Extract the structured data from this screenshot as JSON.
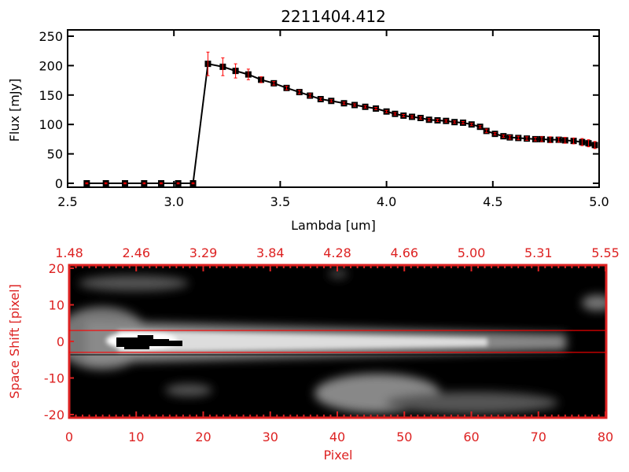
{
  "chart_data": [
    {
      "type": "line",
      "title": "2211404.412",
      "xlabel": "Lambda [um]",
      "ylabel": "Flux [mJy]",
      "xlim": [
        2.5,
        5.0
      ],
      "ylim": [
        -5,
        250
      ],
      "xticks": [
        "2.5",
        "3.0",
        "3.5",
        "4.0",
        "4.5",
        "5.0"
      ],
      "xtick_values": [
        2.5,
        3.0,
        3.5,
        4.0,
        4.5,
        5.0
      ],
      "yticks": [
        "0",
        "50",
        "100",
        "150",
        "200",
        "250"
      ],
      "ytick_values": [
        0,
        50,
        100,
        150,
        200,
        250
      ],
      "series": [
        {
          "name": "flux",
          "color": "#000000",
          "errcolor": "#ff0000",
          "x": [
            2.59,
            2.68,
            2.77,
            2.86,
            2.94,
            3.02,
            3.09,
            3.16,
            3.23,
            3.29,
            3.35,
            3.41,
            3.47,
            3.53,
            3.59,
            3.64,
            3.69,
            3.74,
            3.8,
            3.85,
            3.9,
            3.95,
            4.0,
            4.04,
            4.08,
            4.12,
            4.16,
            4.2,
            4.24,
            4.28,
            4.32,
            4.36,
            4.4,
            4.44,
            4.47,
            4.51,
            4.55,
            4.58,
            4.62,
            4.66,
            4.7,
            4.73,
            4.77,
            4.81,
            4.84,
            4.88,
            4.92,
            4.95,
            4.98
          ],
          "y": [
            0,
            0,
            0,
            0,
            0,
            0,
            0,
            203,
            198,
            191,
            185,
            176,
            170,
            162,
            155,
            149,
            143,
            140,
            136,
            133,
            130,
            127,
            122,
            118,
            115,
            113,
            111,
            108,
            107,
            106,
            104,
            103,
            100,
            96,
            89,
            84,
            80,
            78,
            77,
            76,
            75,
            75,
            74,
            74,
            73,
            72,
            70,
            68,
            65
          ],
          "err": [
            1,
            1,
            1,
            1,
            1,
            1,
            1,
            20,
            15,
            12,
            9,
            5,
            3,
            3,
            3,
            3,
            2,
            2,
            2,
            2,
            2,
            2,
            2,
            2,
            2,
            2,
            2,
            2,
            2,
            2,
            2,
            2,
            2,
            2,
            3,
            2,
            2,
            3,
            3,
            3,
            3,
            4,
            5,
            4,
            5,
            5,
            6,
            6,
            6
          ]
        }
      ]
    },
    {
      "type": "heatmap",
      "xlabel": "Pixel",
      "ylabel": "Space Shift [pixel]",
      "xlim": [
        0,
        81
      ],
      "ylim": [
        -21,
        21
      ],
      "xticks": [
        "0",
        "10",
        "20",
        "30",
        "40",
        "50",
        "60",
        "70",
        "80"
      ],
      "xtick_values": [
        0,
        10,
        20,
        30,
        40,
        50,
        60,
        70,
        80
      ],
      "yticks": [
        "20",
        "10",
        "0",
        "-10",
        "-20"
      ],
      "ytick_values": [
        20,
        10,
        0,
        -10,
        -20
      ],
      "top_axis_ticks": [
        "1.48",
        "2.46",
        "3.29",
        "3.84",
        "4.28",
        "4.66",
        "5.00",
        "5.31",
        "5.55"
      ],
      "extraction_window": [
        -3,
        3
      ],
      "axis_color": "#dd2222"
    }
  ]
}
